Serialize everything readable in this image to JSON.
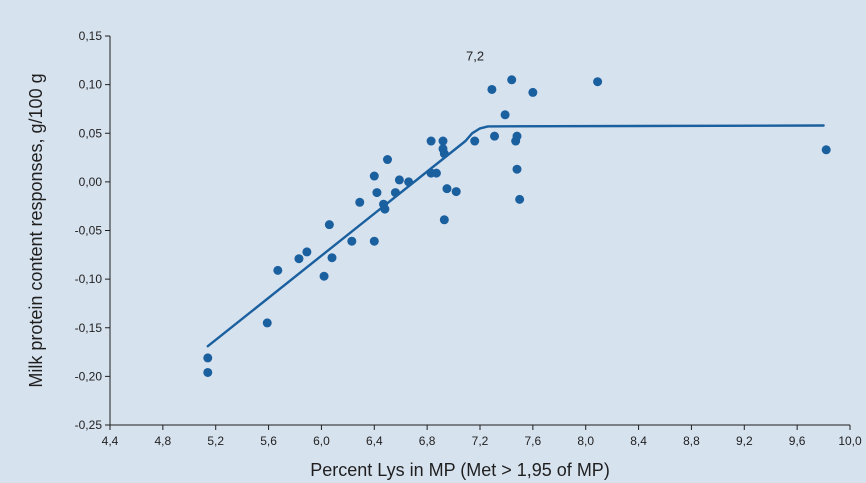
{
  "chart_data": {
    "type": "scatter",
    "title": "",
    "xlabel": "Percent Lys in MP (Met > 1,95 of MP)",
    "ylabel": "Milk protein content responses, g/100 g",
    "xlim": [
      4.4,
      10.0
    ],
    "ylim": [
      -0.25,
      0.15
    ],
    "x_ticks": [
      "4,4",
      "4,8",
      "5,2",
      "5,6",
      "6,0",
      "6,4",
      "6,8",
      "7,2",
      "7,6",
      "8,0",
      "8,4",
      "8,8",
      "9,2",
      "9,6",
      "10,0"
    ],
    "y_ticks": [
      "0,15",
      "0,10",
      "0,05",
      "0,00",
      "-0,05",
      "-0,10",
      "-0,15",
      "-0,20",
      "-0,25"
    ],
    "grid": false,
    "annotation": "7,2",
    "colors": {
      "points": "#1a5f9e",
      "line": "#1a5f9e",
      "background": "#d7e2ef"
    },
    "points": [
      {
        "x": 5.14,
        "y": -0.181
      },
      {
        "x": 5.14,
        "y": -0.196
      },
      {
        "x": 5.59,
        "y": -0.145
      },
      {
        "x": 5.67,
        "y": -0.091
      },
      {
        "x": 5.83,
        "y": -0.079
      },
      {
        "x": 5.89,
        "y": -0.072
      },
      {
        "x": 6.02,
        "y": -0.097
      },
      {
        "x": 6.06,
        "y": -0.044
      },
      {
        "x": 6.08,
        "y": -0.078
      },
      {
        "x": 6.23,
        "y": -0.061
      },
      {
        "x": 6.29,
        "y": -0.021
      },
      {
        "x": 6.4,
        "y": 0.006
      },
      {
        "x": 6.4,
        "y": -0.061
      },
      {
        "x": 6.42,
        "y": -0.011
      },
      {
        "x": 6.47,
        "y": -0.023
      },
      {
        "x": 6.48,
        "y": -0.028
      },
      {
        "x": 6.5,
        "y": 0.023
      },
      {
        "x": 6.56,
        "y": -0.011
      },
      {
        "x": 6.59,
        "y": 0.002
      },
      {
        "x": 6.66,
        "y": 0.0
      },
      {
        "x": 6.83,
        "y": 0.042
      },
      {
        "x": 6.83,
        "y": 0.009
      },
      {
        "x": 6.87,
        "y": 0.009
      },
      {
        "x": 6.92,
        "y": 0.042
      },
      {
        "x": 6.92,
        "y": 0.034
      },
      {
        "x": 6.93,
        "y": 0.029
      },
      {
        "x": 6.93,
        "y": -0.039
      },
      {
        "x": 6.95,
        "y": -0.007
      },
      {
        "x": 7.02,
        "y": -0.01
      },
      {
        "x": 7.16,
        "y": 0.042
      },
      {
        "x": 7.29,
        "y": 0.095
      },
      {
        "x": 7.31,
        "y": 0.047
      },
      {
        "x": 7.39,
        "y": 0.069
      },
      {
        "x": 7.44,
        "y": 0.105
      },
      {
        "x": 7.47,
        "y": 0.042
      },
      {
        "x": 7.48,
        "y": 0.047
      },
      {
        "x": 7.48,
        "y": 0.013
      },
      {
        "x": 7.5,
        "y": -0.018
      },
      {
        "x": 7.6,
        "y": 0.092
      },
      {
        "x": 8.09,
        "y": 0.103
      },
      {
        "x": 9.82,
        "y": 0.033
      }
    ],
    "fit_line": [
      {
        "x": 5.14,
        "y": -0.169
      },
      {
        "x": 7.09,
        "y": 0.042
      },
      {
        "x": 7.14,
        "y": 0.05
      },
      {
        "x": 7.2,
        "y": 0.055
      },
      {
        "x": 7.26,
        "y": 0.057
      },
      {
        "x": 9.8,
        "y": 0.058
      }
    ]
  }
}
